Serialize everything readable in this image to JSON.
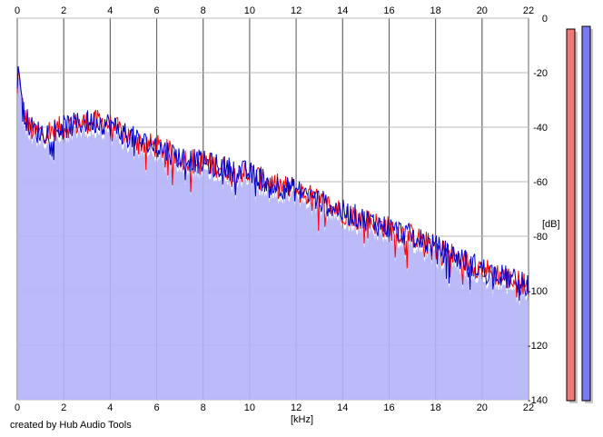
{
  "chart_data": {
    "type": "area",
    "xlabel": "[kHz]",
    "ylabel": "[dB]",
    "xlim": [
      0,
      22
    ],
    "ylim": [
      -140,
      0
    ],
    "x_ticks": [
      0,
      2,
      4,
      6,
      8,
      10,
      12,
      14,
      16,
      18,
      20,
      22
    ],
    "y_ticks": [
      "0",
      "-20",
      "-40",
      "-60",
      "-80",
      "-100",
      "-120",
      "-140"
    ],
    "grid": true,
    "series": [
      {
        "color": "#ff0000",
        "x": [
          0,
          0.05,
          0.1,
          0.2,
          0.3,
          0.5,
          0.7,
          1.0,
          1.5,
          2.0,
          2.5,
          3.0,
          3.5,
          4.0,
          4.5,
          5.0,
          5.5,
          6.0,
          7.0,
          8.0,
          9.0,
          10.0,
          11.0,
          12.0,
          13.0,
          14.0,
          15.0,
          16.0,
          17.0,
          18.0,
          19.0,
          20.0,
          21.0,
          22.0
        ],
        "y": [
          -28,
          -18,
          -22,
          -30,
          -36,
          -40,
          -42,
          -42,
          -41,
          -40,
          -39,
          -38,
          -38,
          -39,
          -42,
          -44,
          -46,
          -47,
          -51,
          -53,
          -55,
          -57,
          -61,
          -63,
          -67,
          -71,
          -74,
          -77,
          -80,
          -84,
          -88,
          -92,
          -95,
          -98
        ]
      },
      {
        "color": "#0000cc",
        "x": [
          0,
          0.05,
          0.1,
          0.2,
          0.3,
          0.5,
          0.7,
          1.0,
          1.5,
          2.0,
          2.5,
          3.0,
          3.5,
          4.0,
          4.5,
          5.0,
          5.5,
          6.0,
          7.0,
          8.0,
          9.0,
          10.0,
          11.0,
          12.0,
          13.0,
          14.0,
          15.0,
          16.0,
          17.0,
          18.0,
          19.0,
          20.0,
          21.0,
          22.0
        ],
        "y": [
          -26,
          -17,
          -21,
          -29,
          -35,
          -39,
          -41,
          -42,
          -41,
          -40,
          -39,
          -38,
          -38,
          -39,
          -42,
          -44,
          -46,
          -47,
          -51,
          -53,
          -55,
          -57,
          -61,
          -63,
          -67,
          -71,
          -74,
          -77,
          -80,
          -84,
          -88,
          -92,
          -95,
          -98
        ]
      }
    ],
    "channel_meters": [
      {
        "color": "#f07878",
        "level_db": -4
      },
      {
        "color": "#7a7af0",
        "level_db": -3
      }
    ]
  },
  "footer_text": "created by Hub Audio Tools"
}
